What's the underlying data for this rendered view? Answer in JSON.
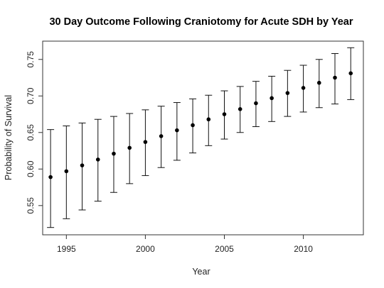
{
  "chart_data": {
    "type": "scatter",
    "title": "30 Day Outcome Following Craniotomy for Acute SDH by Year",
    "xlabel": "Year",
    "ylabel": "Probability of Survival",
    "xlim": [
      1993.5,
      2013.8
    ],
    "ylim": [
      0.51,
      0.775
    ],
    "x_ticks": [
      1995,
      2000,
      2005,
      2010
    ],
    "y_ticks": [
      0.55,
      0.6,
      0.65,
      0.7,
      0.75
    ],
    "x_tick_labels": [
      "1995",
      "2000",
      "2005",
      "2010"
    ],
    "y_tick_labels": [
      "0.55",
      "0.60",
      "0.65",
      "0.70",
      "0.75"
    ],
    "grid": false,
    "legend": "none",
    "series": [
      {
        "x": [
          1994,
          1995,
          1996,
          1997,
          1998,
          1999,
          2000,
          2001,
          2002,
          2003,
          2004,
          2005,
          2006,
          2007,
          2008,
          2009,
          2010,
          2011,
          2012,
          2013
        ],
        "y": [
          0.589,
          0.597,
          0.605,
          0.613,
          0.621,
          0.629,
          0.637,
          0.645,
          0.653,
          0.66,
          0.668,
          0.675,
          0.682,
          0.69,
          0.697,
          0.704,
          0.711,
          0.718,
          0.725,
          0.731
        ],
        "lower": [
          0.52,
          0.532,
          0.544,
          0.556,
          0.568,
          0.58,
          0.591,
          0.602,
          0.612,
          0.622,
          0.632,
          0.641,
          0.65,
          0.658,
          0.665,
          0.672,
          0.678,
          0.684,
          0.689,
          0.695
        ],
        "upper": [
          0.654,
          0.659,
          0.663,
          0.668,
          0.672,
          0.676,
          0.681,
          0.686,
          0.691,
          0.696,
          0.701,
          0.707,
          0.713,
          0.72,
          0.727,
          0.735,
          0.742,
          0.75,
          0.758,
          0.766
        ]
      }
    ],
    "colors": {
      "points": "#000000",
      "error_bars": "#111111",
      "frame": "#333333"
    }
  }
}
